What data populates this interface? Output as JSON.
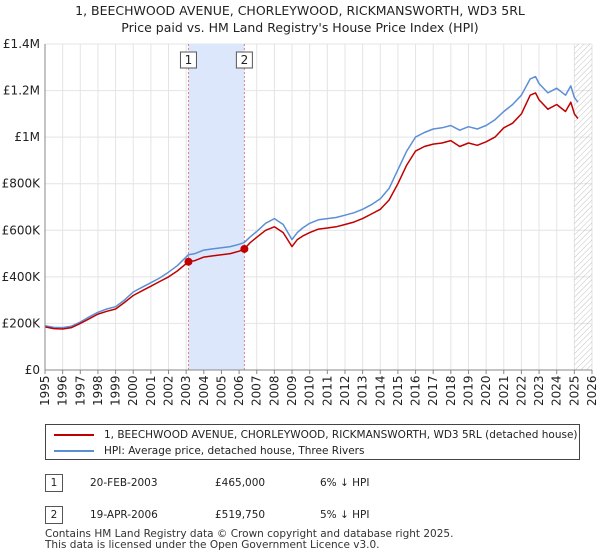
{
  "title": {
    "line1": "1, BEECHWOOD AVENUE, CHORLEYWOOD, RICKMANSWORTH, WD3 5RL",
    "line2": "Price paid vs. HM Land Registry's House Price Index (HPI)"
  },
  "colors": {
    "property": "#c00000",
    "hpi": "#5b8fd6",
    "shade": "#dde7fb",
    "marker_line": "#e08080",
    "hatch": "#999999"
  },
  "chart_data": {
    "type": "line",
    "title": "Price paid vs. HM Land Registry's House Price Index (HPI)",
    "xlabel": "",
    "ylabel": "",
    "xlim": [
      1995,
      2026
    ],
    "ylim": [
      0,
      1400000
    ],
    "grid": true,
    "x_ticks": [
      "1995",
      "1996",
      "1997",
      "1998",
      "1999",
      "2000",
      "2001",
      "2002",
      "2003",
      "2004",
      "2005",
      "2006",
      "2007",
      "2008",
      "2009",
      "2010",
      "2011",
      "2012",
      "2013",
      "2014",
      "2015",
      "2016",
      "2017",
      "2018",
      "2019",
      "2020",
      "2021",
      "2022",
      "2023",
      "2024",
      "2025",
      "2026"
    ],
    "y_ticks": [
      {
        "value": 0,
        "label": "£0"
      },
      {
        "value": 200000,
        "label": "£200K"
      },
      {
        "value": 400000,
        "label": "£400K"
      },
      {
        "value": 600000,
        "label": "£600K"
      },
      {
        "value": 800000,
        "label": "£800K"
      },
      {
        "value": 1000000,
        "label": "£1M"
      },
      {
        "value": 1200000,
        "label": "£1.2M"
      },
      {
        "value": 1400000,
        "label": "£1.4M"
      }
    ],
    "shaded_period": [
      2003.13,
      2006.3
    ],
    "hatched_from": 2025.0,
    "series": [
      {
        "name": "1, BEECHWOOD AVENUE, CHORLEYWOOD, RICKMANSWORTH, WD3 5RL (detached house)",
        "x": [
          1995.0,
          1995.5,
          1996.0,
          1996.5,
          1997.0,
          1997.5,
          1998.0,
          1998.5,
          1999.0,
          1999.5,
          2000.0,
          2000.5,
          2001.0,
          2001.5,
          2002.0,
          2002.5,
          2003.13,
          2003.5,
          2004.0,
          2004.5,
          2005.0,
          2005.5,
          2006.0,
          2006.3,
          2006.6,
          2007.0,
          2007.5,
          2008.0,
          2008.5,
          2009.0,
          2009.3,
          2009.6,
          2010.0,
          2010.5,
          2011.0,
          2011.5,
          2012.0,
          2012.5,
          2013.0,
          2013.5,
          2014.0,
          2014.5,
          2015.0,
          2015.5,
          2016.0,
          2016.5,
          2017.0,
          2017.5,
          2018.0,
          2018.5,
          2019.0,
          2019.5,
          2020.0,
          2020.5,
          2021.0,
          2021.5,
          2022.0,
          2022.5,
          2022.8,
          2023.0,
          2023.5,
          2024.0,
          2024.5,
          2024.8,
          2025.0,
          2025.2
        ],
        "values": [
          185000,
          178000,
          176000,
          182000,
          200000,
          220000,
          240000,
          252000,
          262000,
          290000,
          320000,
          340000,
          360000,
          380000,
          400000,
          425000,
          465000,
          470000,
          485000,
          490000,
          495000,
          500000,
          510000,
          519750,
          545000,
          570000,
          600000,
          615000,
          590000,
          530000,
          560000,
          575000,
          590000,
          605000,
          610000,
          615000,
          625000,
          635000,
          650000,
          670000,
          690000,
          730000,
          800000,
          880000,
          940000,
          960000,
          970000,
          975000,
          985000,
          960000,
          975000,
          965000,
          980000,
          1000000,
          1040000,
          1060000,
          1100000,
          1180000,
          1190000,
          1160000,
          1120000,
          1140000,
          1110000,
          1150000,
          1100000,
          1080000
        ]
      },
      {
        "name": "HPI: Average price, detached house, Three Rivers",
        "x": [
          1995.0,
          1995.5,
          1996.0,
          1996.5,
          1997.0,
          1997.5,
          1998.0,
          1998.5,
          1999.0,
          1999.5,
          2000.0,
          2000.5,
          2001.0,
          2001.5,
          2002.0,
          2002.5,
          2003.13,
          2003.5,
          2004.0,
          2004.5,
          2005.0,
          2005.5,
          2006.0,
          2006.3,
          2006.6,
          2007.0,
          2007.5,
          2008.0,
          2008.5,
          2009.0,
          2009.3,
          2009.6,
          2010.0,
          2010.5,
          2011.0,
          2011.5,
          2012.0,
          2012.5,
          2013.0,
          2013.5,
          2014.0,
          2014.5,
          2015.0,
          2015.5,
          2016.0,
          2016.5,
          2017.0,
          2017.5,
          2018.0,
          2018.5,
          2019.0,
          2019.5,
          2020.0,
          2020.5,
          2021.0,
          2021.5,
          2022.0,
          2022.5,
          2022.8,
          2023.0,
          2023.5,
          2024.0,
          2024.5,
          2024.8,
          2025.0,
          2025.2
        ],
        "values": [
          190000,
          183000,
          182000,
          188000,
          206000,
          228000,
          248000,
          262000,
          272000,
          300000,
          335000,
          355000,
          375000,
          395000,
          420000,
          448000,
          495000,
          500000,
          515000,
          520000,
          525000,
          530000,
          540000,
          548000,
          570000,
          595000,
          630000,
          650000,
          625000,
          560000,
          590000,
          610000,
          630000,
          645000,
          650000,
          655000,
          665000,
          675000,
          690000,
          710000,
          735000,
          780000,
          860000,
          940000,
          1000000,
          1020000,
          1035000,
          1040000,
          1050000,
          1030000,
          1045000,
          1035000,
          1050000,
          1075000,
          1110000,
          1140000,
          1180000,
          1250000,
          1260000,
          1230000,
          1190000,
          1210000,
          1180000,
          1220000,
          1170000,
          1150000
        ]
      }
    ],
    "annotations": [
      {
        "label": "1",
        "x": 2003.13,
        "value": 465000
      },
      {
        "label": "2",
        "x": 2006.3,
        "value": 519750
      }
    ]
  },
  "legend": {
    "property_label": "1, BEECHWOOD AVENUE, CHORLEYWOOD, RICKMANSWORTH, WD3 5RL (detached house)",
    "hpi_label": "HPI: Average price, detached house, Three Rivers"
  },
  "sales": [
    {
      "num": "1",
      "date": "20-FEB-2003",
      "price": "£465,000",
      "hpi": "6% ↓ HPI"
    },
    {
      "num": "2",
      "date": "19-APR-2006",
      "price": "£519,750",
      "hpi": "5% ↓ HPI"
    }
  ],
  "footer": {
    "line1": "Contains HM Land Registry data © Crown copyright and database right 2025.",
    "line2": "This data is licensed under the Open Government Licence v3.0."
  }
}
